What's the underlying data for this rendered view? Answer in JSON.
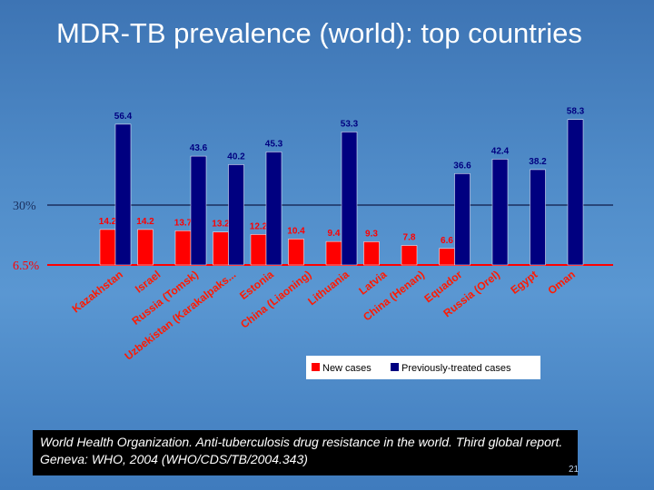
{
  "slide": {
    "title": "MDR-TB prevalence (world): top countries",
    "citation": "World Health Organization.  Anti-tuberculosis drug resistance in the world. Third global report. Geneva: WHO, 2004 (WHO/CDS/TB/2004.343)",
    "slide_number": "21"
  },
  "chart_data": {
    "type": "bar",
    "categories": [
      "Kazakhstan",
      "Israel",
      "Russia (Tomsk)",
      "Uzbekistan (Karakalpaks...",
      "Estonia",
      "China (Liaoning)",
      "Lithuania",
      "Latvia",
      "China (Henan)",
      "Equador",
      "Russia (Orel)",
      "Egypt",
      "Oman"
    ],
    "series": [
      {
        "name": "New cases",
        "color": "#ff0000",
        "values": [
          14.2,
          14.2,
          13.7,
          13.2,
          12.2,
          10.4,
          9.4,
          9.3,
          7.8,
          6.6,
          null,
          null,
          null
        ]
      },
      {
        "name": "Previously-treated cases",
        "color": "#000080",
        "values": [
          56.4,
          null,
          43.6,
          40.2,
          45.3,
          null,
          53.3,
          null,
          null,
          36.6,
          42.4,
          38.2,
          58.3
        ]
      }
    ],
    "reference_lines": [
      {
        "label": "30%",
        "color": "#1a2f5e"
      },
      {
        "label": "6.5%",
        "color": "#ff0000"
      }
    ],
    "legend_position": "bottom-right",
    "grid": false
  }
}
